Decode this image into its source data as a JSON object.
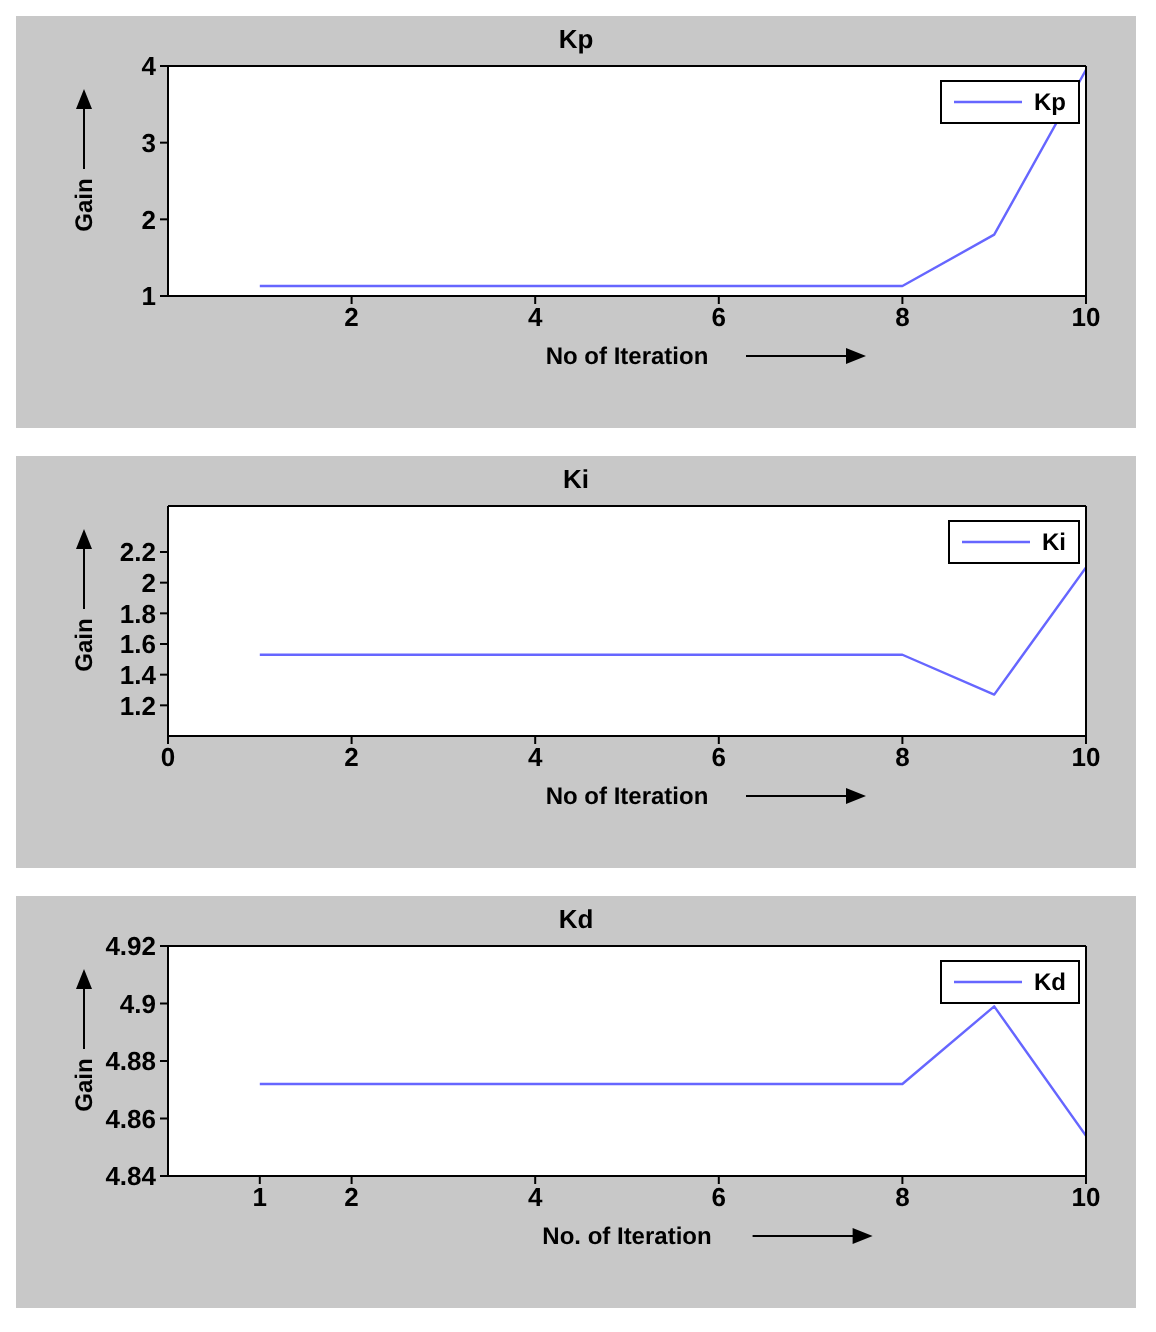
{
  "chart_data": [
    {
      "type": "line",
      "title": "Kp",
      "xlabel": "No of Iteration",
      "ylabel": "Gain",
      "x": [
        1,
        2,
        3,
        4,
        5,
        6,
        7,
        8,
        9,
        10
      ],
      "series": [
        {
          "name": "Kp",
          "color": "#6666ff",
          "values": [
            1.13,
            1.13,
            1.13,
            1.13,
            1.13,
            1.13,
            1.13,
            1.13,
            1.8,
            3.95
          ]
        }
      ],
      "xlim": [
        0,
        10
      ],
      "xticks": [
        2,
        4,
        6,
        8,
        10
      ],
      "ylim": [
        1,
        4
      ],
      "yticks": [
        1,
        2,
        3,
        4
      ],
      "legend": "top right",
      "marker": "none",
      "line_style": "solid"
    },
    {
      "type": "line",
      "title": "Ki",
      "xlabel": "No of Iteration",
      "ylabel": "Gain",
      "x": [
        1,
        2,
        3,
        4,
        5,
        6,
        7,
        8,
        9,
        10
      ],
      "series": [
        {
          "name": "Ki",
          "color": "#6666ff",
          "values": [
            1.53,
            1.53,
            1.53,
            1.53,
            1.53,
            1.53,
            1.53,
            1.53,
            1.27,
            2.1
          ]
        }
      ],
      "xlim": [
        0,
        10
      ],
      "xticks": [
        0,
        2,
        4,
        6,
        8,
        10
      ],
      "ylim": [
        1,
        2.5
      ],
      "yticks": [
        1.2,
        1.4,
        1.6,
        1.8,
        2,
        2.2
      ],
      "legend": "top right",
      "marker": "none",
      "line_style": "solid"
    },
    {
      "type": "line",
      "title": "Kd",
      "xlabel": "No. of Iteration",
      "ylabel": "Gain",
      "x": [
        1,
        2,
        3,
        4,
        5,
        6,
        7,
        8,
        9,
        10
      ],
      "series": [
        {
          "name": "Kd",
          "color": "#6666ff",
          "values": [
            4.872,
            4.872,
            4.872,
            4.872,
            4.872,
            4.872,
            4.872,
            4.872,
            4.899,
            4.854
          ]
        }
      ],
      "xlim": [
        0,
        10
      ],
      "xticks": [
        1,
        2,
        4,
        6,
        8,
        10
      ],
      "ylim": [
        4.84,
        4.92
      ],
      "yticks": [
        4.84,
        4.86,
        4.88,
        4.9,
        4.92
      ],
      "legend": "top right",
      "marker": "none",
      "line_style": "solid"
    }
  ]
}
